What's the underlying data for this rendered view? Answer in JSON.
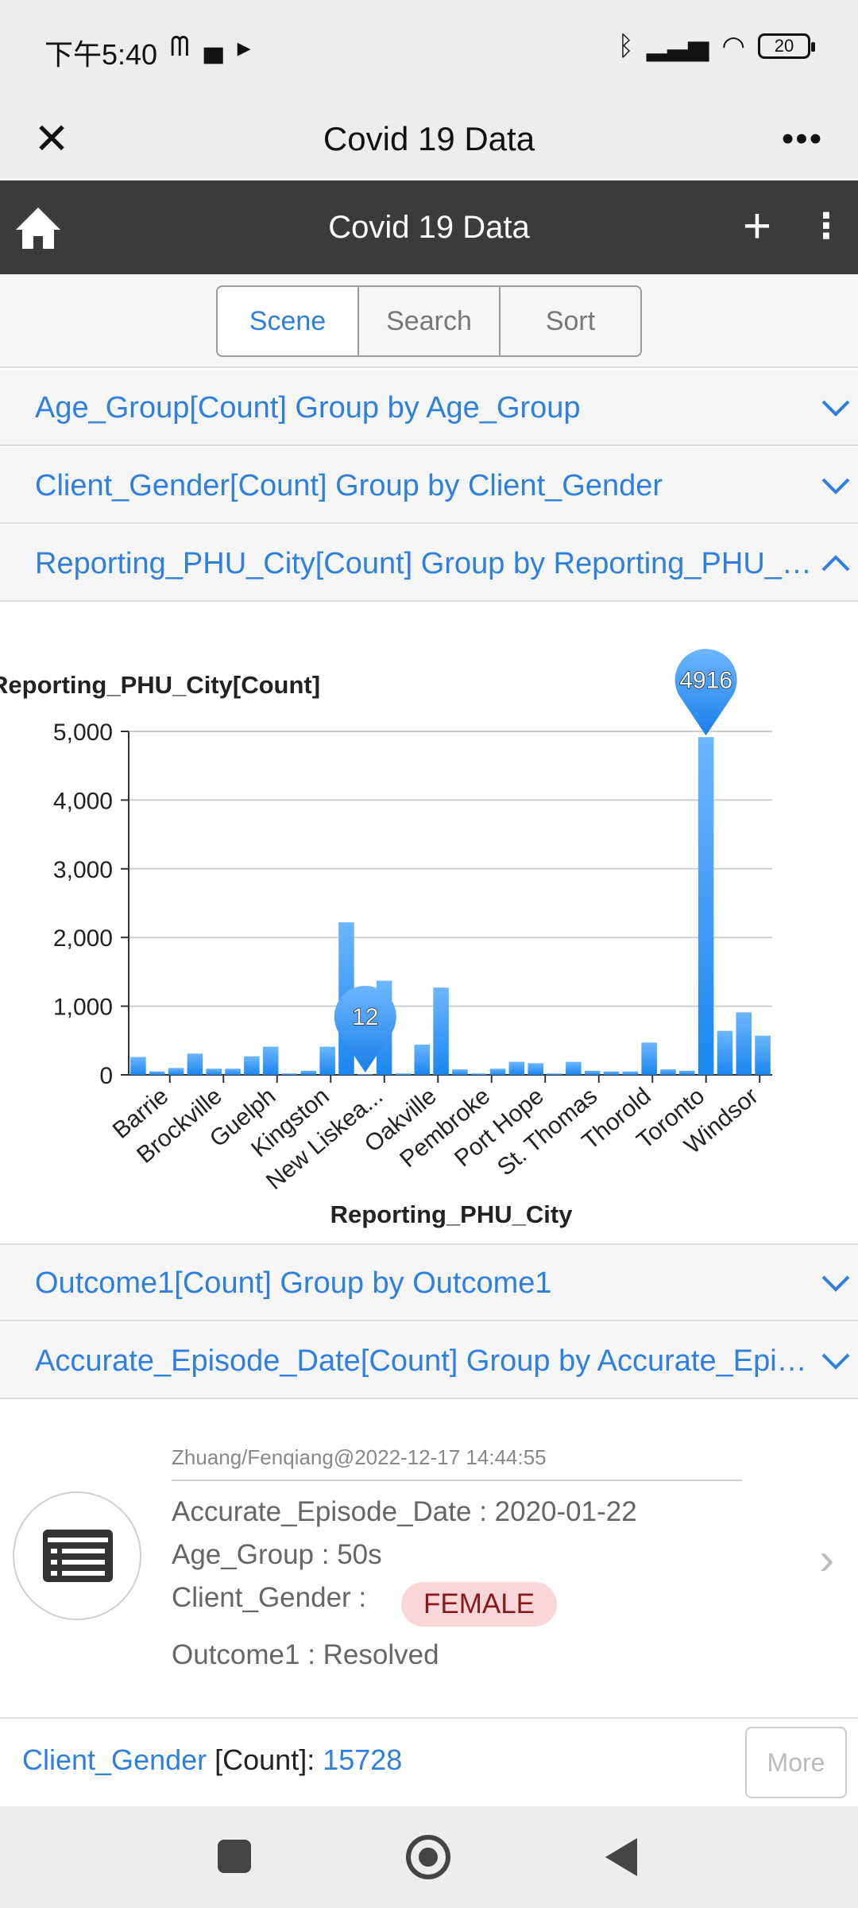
{
  "status_bar": {
    "time": "下午5:40",
    "left_icons": [
      "m-icon",
      "notification-icon",
      "play-icon"
    ],
    "battery": "20"
  },
  "window": {
    "title": "Covid 19 Data"
  },
  "app_bar": {
    "title": "Covid 19 Data"
  },
  "segments": [
    {
      "label": "Scene",
      "active": true
    },
    {
      "label": "Search",
      "active": false
    },
    {
      "label": "Sort",
      "active": false
    }
  ],
  "accordions": [
    {
      "label": "Age_Group[Count] Group by Age_Group",
      "expanded": false
    },
    {
      "label": "Client_Gender[Count] Group by Client_Gender",
      "expanded": false
    },
    {
      "label": "Reporting_PHU_City[Count] Group by Reporting_PHU_City",
      "expanded": true
    },
    {
      "label": "Outcome1[Count] Group by Outcome1",
      "expanded": false
    },
    {
      "label": "Accurate_Episode_Date[Count] Group by Accurate_Episode_Date",
      "expanded": false
    }
  ],
  "chart_data": {
    "type": "bar",
    "title": "Reporting_PHU_City[Count]",
    "xlabel": "Reporting_PHU_City",
    "ylabel": "",
    "ylim": [
      0,
      5000
    ],
    "yticks": [
      "0",
      "1,000",
      "2,000",
      "3,000",
      "4,000",
      "5,000"
    ],
    "tick_labels": [
      "Barrie",
      "Brockville",
      "Guelph",
      "Kingston",
      "New Liskea...",
      "Oakville",
      "Pembroke",
      "Port Hope",
      "St. Thomas",
      "Thorold",
      "Toronto",
      "Windsor"
    ],
    "values": [
      260,
      50,
      100,
      310,
      90,
      90,
      270,
      410,
      20,
      60,
      410,
      2220,
      12,
      1370,
      20,
      440,
      1270,
      80,
      20,
      90,
      190,
      170,
      20,
      190,
      60,
      50,
      50,
      470,
      80,
      60,
      4916,
      640,
      910,
      570
    ],
    "markers": [
      {
        "value": "4916"
      },
      {
        "value": "12"
      }
    ]
  },
  "record": {
    "meta": "Zhuang/Fenqiang@2022-12-17 14:44:55",
    "episode_date": "Accurate_Episode_Date : 2020-01-22",
    "age_group": "Age_Group : 50s",
    "gender_label": "Client_Gender :",
    "gender_value": "FEMALE",
    "outcome": "Outcome1 : Resolved"
  },
  "footer": {
    "field": "Client_Gender",
    "count_label": " [Count]: ",
    "count": "15728",
    "more_label": "More"
  }
}
